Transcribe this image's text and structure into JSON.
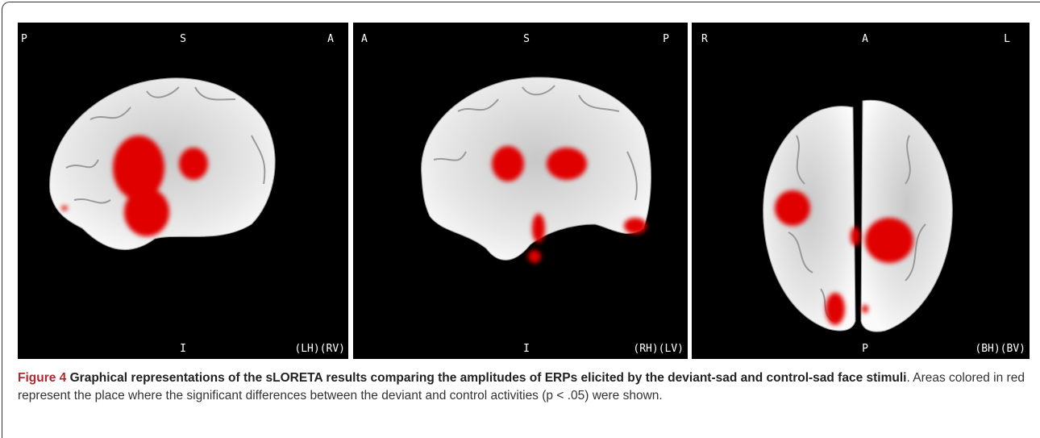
{
  "figure": {
    "panels": [
      {
        "top_left": "P",
        "top_center": "S",
        "top_right": "A",
        "bottom_center": "I",
        "bottom_right": "(LH)(RV)"
      },
      {
        "top_left": "A",
        "top_center": "S",
        "top_right": "P",
        "bottom_center": "I",
        "bottom_right": "(RH)(LV)"
      },
      {
        "top_left": "R",
        "top_center": "A",
        "top_right": "L",
        "bottom_center": "P",
        "bottom_right": "(BH)(BV)"
      }
    ],
    "caption": {
      "label": "Figure 4",
      "title": "Graphical representations of the sLORETA results comparing the amplitudes of ERPs elicited by the deviant-sad and control-sad face stimuli",
      "body": ". Areas colored in red represent the place where the significant differences between the deviant and control activities (p < .05) were shown."
    }
  }
}
